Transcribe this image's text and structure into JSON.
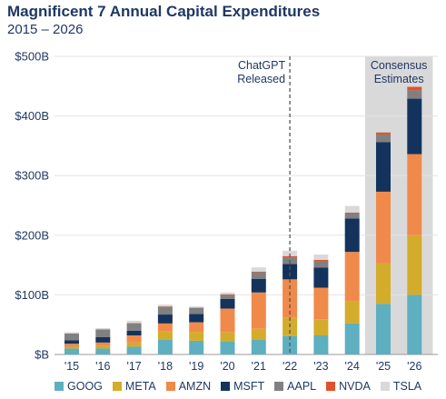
{
  "chart_data": {
    "type": "bar",
    "stacked": true,
    "title": "Magnificent 7 Annual Capital Expenditures",
    "subtitle": "2015 – 2026",
    "categories": [
      "'15",
      "'16",
      "'17",
      "'18",
      "'19",
      "'20",
      "'21",
      "'22",
      "'23",
      "'24",
      "'25",
      "'26"
    ],
    "ylim": [
      0,
      500
    ],
    "yticks": [
      0,
      100,
      200,
      300,
      400,
      500
    ],
    "ytick_labels": [
      "$B",
      "$100B",
      "$200B",
      "$300B",
      "$400B",
      "$500B"
    ],
    "grid": true,
    "legend_position": "bottom",
    "series": [
      {
        "name": "GOOG",
        "color": "#5eafc0",
        "values": [
          10,
          10,
          13,
          25,
          23,
          22,
          25,
          31,
          32,
          52,
          85,
          100
        ]
      },
      {
        "name": "META",
        "color": "#d4ac2b",
        "values": [
          3,
          4,
          7,
          14,
          15,
          15,
          18,
          31,
          27,
          37,
          68,
          100
        ]
      },
      {
        "name": "AMZN",
        "color": "#f08a4b",
        "values": [
          5,
          6,
          12,
          13,
          16,
          40,
          61,
          64,
          53,
          83,
          120,
          136
        ]
      },
      {
        "name": "MSFT",
        "color": "#14335c",
        "values": [
          6,
          9,
          8,
          15,
          14,
          16,
          23,
          26,
          34,
          56,
          83,
          93
        ]
      },
      {
        "name": "AAPL",
        "color": "#808080",
        "values": [
          11,
          13,
          12,
          13,
          10,
          7,
          11,
          11,
          11,
          9,
          13,
          14
        ]
      },
      {
        "name": "NVDA",
        "color": "#e0522d",
        "values": [
          0.3,
          0.2,
          0.6,
          0.6,
          0.5,
          1,
          1,
          2,
          1.6,
          1.1,
          3.5,
          6
        ]
      },
      {
        "name": "TSLA",
        "color": "#d9d9d9",
        "values": [
          2,
          2,
          4,
          3,
          2,
          3,
          7,
          9,
          9,
          11,
          9,
          7
        ]
      }
    ],
    "annotations": [
      {
        "text": "ChatGPT Released",
        "lines": [
          "ChatGPT",
          "Released"
        ],
        "at": "'22",
        "style": "dashed vertical line"
      },
      {
        "text": "Consensus Estimates",
        "lines": [
          "Consensus",
          "Estimates"
        ],
        "span": [
          "'25",
          "'26"
        ],
        "style": "shaded region"
      }
    ]
  }
}
